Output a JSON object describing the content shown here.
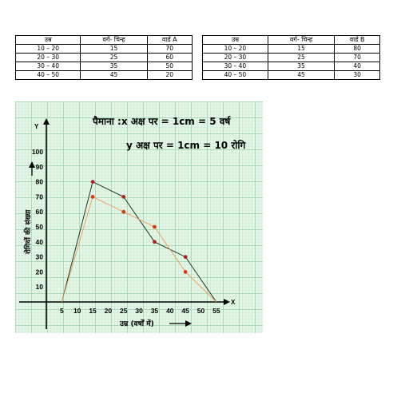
{
  "tables": [
    {
      "headers": [
        "उम्र",
        "वर्ग- चिन्ह",
        "वार्ड A"
      ],
      "rows": [
        [
          "10 – 20",
          "15",
          "70"
        ],
        [
          "20 – 30",
          "25",
          "60"
        ],
        [
          "30 – 40",
          "35",
          "50"
        ],
        [
          "40 – 50",
          "45",
          "20"
        ]
      ]
    },
    {
      "headers": [
        "उम्र",
        "वर्ग- चिन्ह",
        "वार्ड B"
      ],
      "rows": [
        [
          "10 – 20",
          "15",
          "80"
        ],
        [
          "20 – 30",
          "25",
          "70"
        ],
        [
          "30 – 40",
          "35",
          "40"
        ],
        [
          "40 – 50",
          "45",
          "30"
        ]
      ]
    }
  ],
  "chart_data": {
    "type": "line",
    "scale_line1": "पैमाना :x अक्ष पर  = 1cm = 5 वर्ष",
    "scale_line2": "y अक्ष पर  = 1cm = 10 रोगि",
    "xlabel": "उम्र (वर्षों में)",
    "ylabel": "रोगियों की संख्या",
    "x_axis_letter": "X",
    "y_axis_letter": "Y",
    "xlim": [
      0,
      60
    ],
    "ylim": [
      0,
      100
    ],
    "x_ticks": [
      5,
      10,
      15,
      20,
      25,
      30,
      35,
      40,
      45,
      50,
      55
    ],
    "y_ticks": [
      10,
      20,
      30,
      40,
      50,
      60,
      70,
      80,
      90,
      100
    ],
    "grid": true,
    "series": [
      {
        "x": [
          5,
          15,
          25,
          35,
          45,
          55
        ],
        "y": [
          0,
          80,
          70,
          40,
          30,
          0
        ],
        "color": "#1f3b24",
        "marker_color": "#b21f1f"
      },
      {
        "x": [
          5,
          15,
          25,
          35,
          45,
          55
        ],
        "y": [
          0,
          70,
          60,
          50,
          20,
          0
        ],
        "color": "#f0a060",
        "marker_color": "#d63a1a"
      }
    ]
  }
}
